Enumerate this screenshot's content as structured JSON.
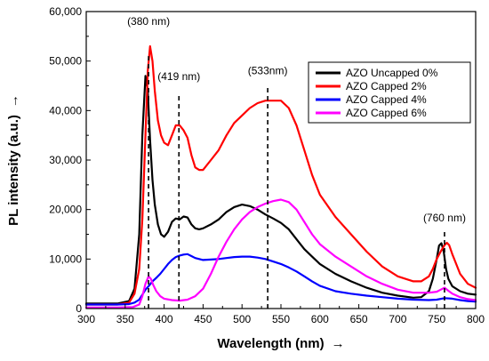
{
  "chart_data": {
    "type": "line",
    "xlabel": "Wavelength (nm)",
    "ylabel": "PL intensity (a.u.)",
    "xlabel_arrow": "→",
    "ylabel_arrow": "→",
    "xlim": [
      300,
      800
    ],
    "ylim": [
      0,
      60000
    ],
    "x_ticks": [
      300,
      350,
      400,
      450,
      500,
      550,
      600,
      650,
      700,
      750,
      800
    ],
    "x_tick_labels": [
      "300",
      "350",
      "400",
      "450",
      "500",
      "550",
      "600",
      "650",
      "700",
      "750",
      "800"
    ],
    "y_ticks": [
      0,
      10000,
      20000,
      30000,
      40000,
      50000,
      60000
    ],
    "y_tick_labels": [
      "0",
      "10,000",
      "20,000",
      "30,000",
      "40,000",
      "50,000",
      "60,000"
    ],
    "grid": false,
    "legend_position": "top-right",
    "annotations": [
      {
        "text": "(380 nm)",
        "x": 380,
        "line_top": 51000,
        "text_y": 57300
      },
      {
        "text": "(419 nm)",
        "x": 419,
        "line_top": 43500,
        "text_y": 46200
      },
      {
        "text": "(533nm)",
        "x": 533,
        "line_top": 45000,
        "text_y": 47300
      },
      {
        "text": "(760 nm)",
        "x": 760,
        "line_top": 15500,
        "text_y": 17600
      }
    ],
    "series": [
      {
        "name": "AZO Uncapped 0%",
        "color": "#000000",
        "x": [
          300,
          340,
          355,
          362,
          368,
          372,
          376,
          379,
          382,
          385,
          388,
          392,
          396,
          400,
          405,
          410,
          415,
          420,
          425,
          430,
          435,
          440,
          445,
          450,
          460,
          470,
          480,
          490,
          500,
          510,
          520,
          530,
          540,
          550,
          560,
          570,
          580,
          590,
          600,
          620,
          640,
          660,
          680,
          700,
          720,
          730,
          740,
          745,
          750,
          753,
          756,
          759,
          762,
          765,
          770,
          780,
          790,
          800
        ],
        "y": [
          1000,
          1000,
          1500,
          4000,
          15000,
          35000,
          47000,
          44000,
          34000,
          26000,
          21000,
          17000,
          15000,
          14500,
          15500,
          17500,
          18200,
          18000,
          18600,
          18400,
          17000,
          16200,
          16000,
          16200,
          17000,
          18000,
          19500,
          20500,
          21000,
          20700,
          20000,
          19000,
          18200,
          17300,
          16000,
          14000,
          12000,
          10500,
          9000,
          7000,
          5500,
          4200,
          3200,
          2600,
          2200,
          2300,
          3500,
          6000,
          10000,
          12700,
          13200,
          11500,
          8000,
          6000,
          4500,
          3500,
          3000,
          2800
        ]
      },
      {
        "name": "AZO Capped 2%",
        "color": "#ff0000",
        "x": [
          300,
          340,
          355,
          362,
          368,
          372,
          376,
          379,
          382,
          385,
          388,
          392,
          396,
          400,
          405,
          410,
          415,
          420,
          425,
          430,
          435,
          440,
          445,
          450,
          460,
          470,
          480,
          490,
          500,
          510,
          520,
          530,
          540,
          550,
          560,
          570,
          580,
          590,
          600,
          620,
          640,
          660,
          680,
          700,
          720,
          730,
          740,
          745,
          750,
          755,
          760,
          763,
          766,
          770,
          775,
          780,
          790,
          800
        ],
        "y": [
          800,
          800,
          1200,
          3000,
          8000,
          18000,
          35000,
          48000,
          53000,
          50000,
          44000,
          38000,
          35000,
          33500,
          33000,
          35000,
          37000,
          37000,
          36000,
          34500,
          31000,
          28500,
          28000,
          28000,
          30000,
          32000,
          35000,
          37500,
          39000,
          40500,
          41500,
          42000,
          42000,
          42000,
          40500,
          37000,
          32000,
          27000,
          23000,
          18500,
          15000,
          11500,
          8500,
          6500,
          5500,
          5500,
          6500,
          8000,
          10000,
          11500,
          12800,
          13300,
          12800,
          11000,
          9000,
          7000,
          5000,
          4200
        ]
      },
      {
        "name": "AZO Capped 4%",
        "color": "#0000ff",
        "x": [
          300,
          340,
          355,
          362,
          368,
          372,
          376,
          380,
          385,
          390,
          395,
          400,
          405,
          410,
          415,
          420,
          425,
          430,
          435,
          440,
          445,
          450,
          460,
          470,
          480,
          490,
          500,
          510,
          520,
          530,
          540,
          550,
          560,
          570,
          580,
          590,
          600,
          620,
          640,
          660,
          680,
          700,
          720,
          740,
          750,
          760,
          770,
          780,
          790,
          800
        ],
        "y": [
          800,
          800,
          900,
          1200,
          1800,
          2800,
          3800,
          4500,
          5500,
          6200,
          7000,
          8000,
          9000,
          9800,
          10400,
          10700,
          10900,
          11000,
          10600,
          10200,
          10000,
          9800,
          9900,
          10000,
          10200,
          10400,
          10500,
          10500,
          10300,
          10000,
          9500,
          9000,
          8300,
          7500,
          6500,
          5500,
          4600,
          3500,
          3000,
          2600,
          2300,
          2000,
          1800,
          1700,
          1800,
          2100,
          2000,
          1700,
          1500,
          1400
        ]
      },
      {
        "name": "AZO Capped 6%",
        "color": "#ff00ff",
        "x": [
          300,
          340,
          360,
          368,
          372,
          376,
          380,
          383,
          386,
          390,
          395,
          400,
          410,
          420,
          430,
          440,
          450,
          460,
          470,
          480,
          490,
          500,
          510,
          520,
          530,
          540,
          550,
          560,
          570,
          580,
          590,
          600,
          620,
          640,
          660,
          680,
          700,
          720,
          740,
          750,
          755,
          760,
          765,
          770,
          780,
          790,
          800
        ],
        "y": [
          200,
          200,
          300,
          800,
          2500,
          5000,
          6500,
          6000,
          4800,
          3500,
          2500,
          2000,
          1700,
          1600,
          1800,
          2500,
          4000,
          7000,
          10500,
          13500,
          16000,
          18000,
          19500,
          20500,
          21200,
          21700,
          22000,
          21500,
          20000,
          17500,
          15000,
          13000,
          10500,
          8500,
          6500,
          5000,
          3800,
          3200,
          3200,
          3400,
          3800,
          4200,
          3600,
          3000,
          2300,
          1900,
          1700
        ]
      }
    ]
  }
}
